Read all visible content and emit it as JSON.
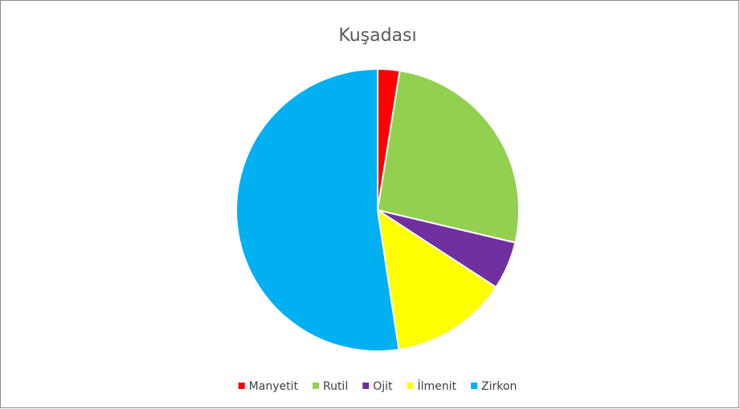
{
  "chart_data": {
    "type": "pie",
    "title": "Kuşadası",
    "categories": [
      "Manyetit",
      "Rutil",
      "Ojit",
      "İlmenit",
      "Zirkon"
    ],
    "values": [
      2.5,
      26.2,
      5.5,
      13.4,
      52.4
    ],
    "colors": [
      "#ff0000",
      "#92d050",
      "#7030a0",
      "#ffff00",
      "#00b0f0"
    ],
    "legend": "bottom"
  }
}
